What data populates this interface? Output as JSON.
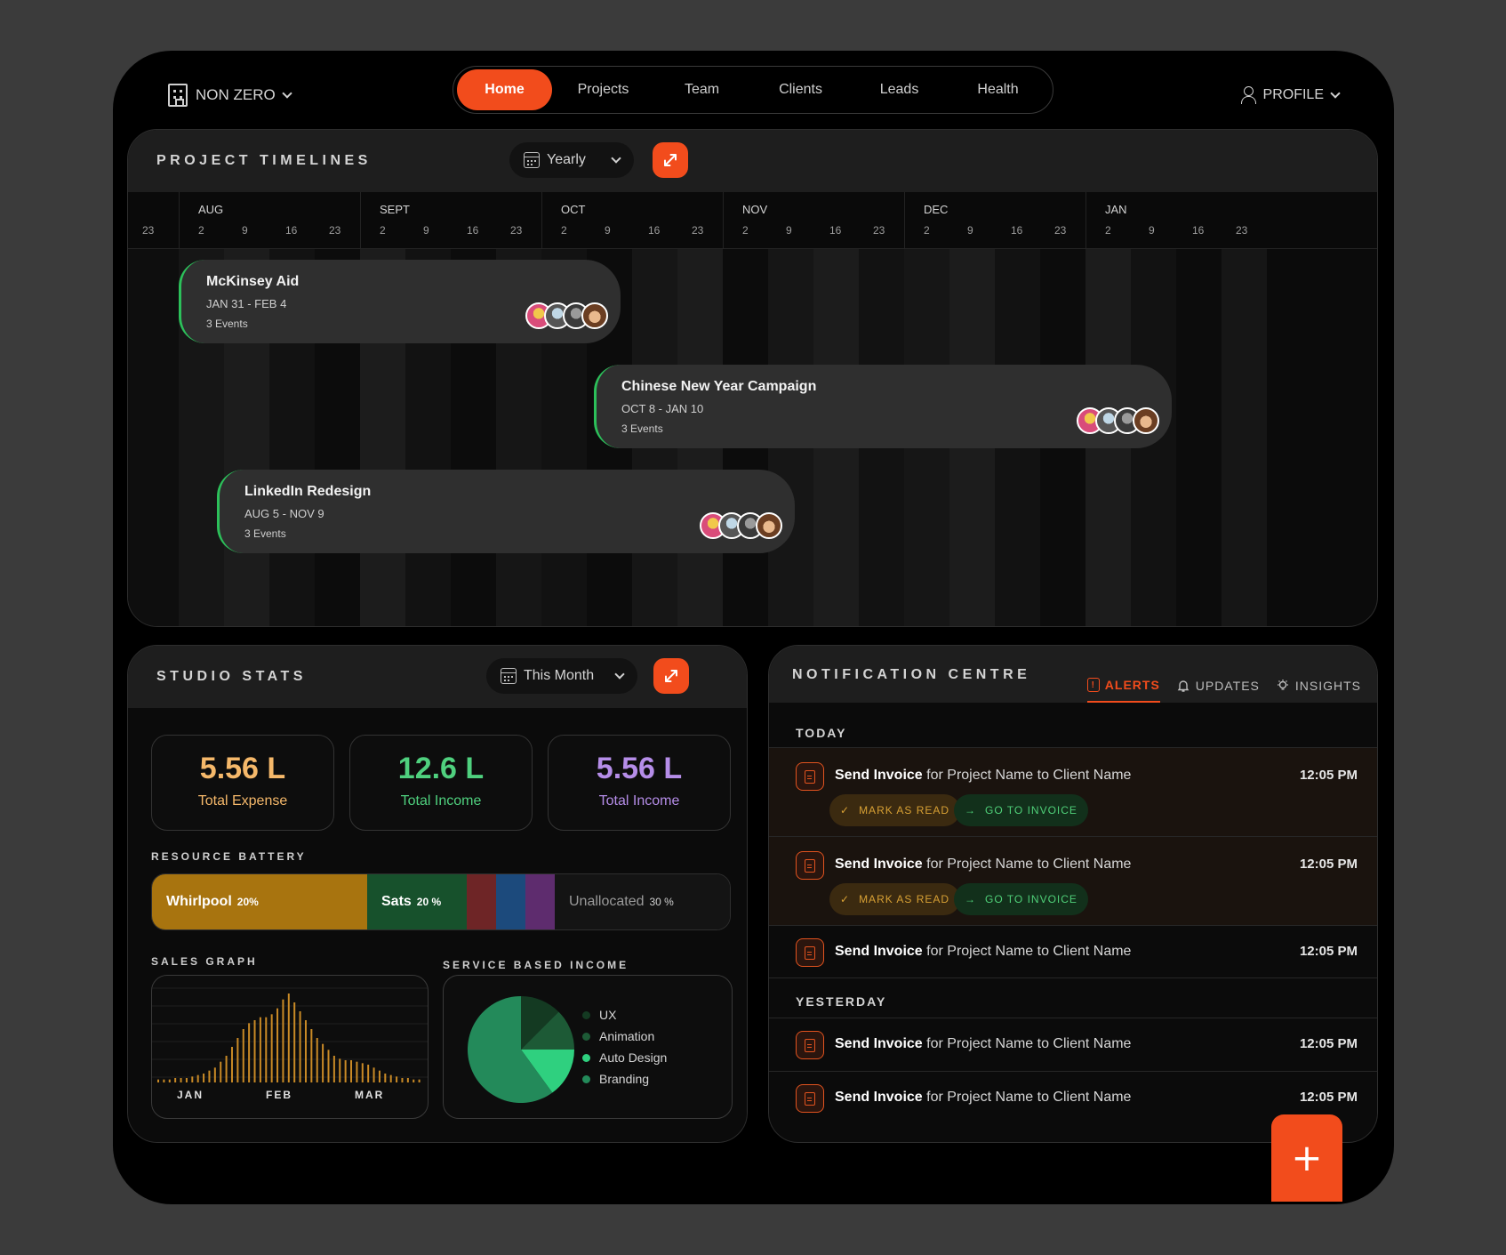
{
  "brand": {
    "name": "NON ZERO"
  },
  "nav": {
    "tabs": [
      {
        "label": "Home",
        "active": true
      },
      {
        "label": "Projects"
      },
      {
        "label": "Team"
      },
      {
        "label": "Clients"
      },
      {
        "label": "Leads"
      },
      {
        "label": "Health"
      }
    ]
  },
  "profile": {
    "label": "PROFILE"
  },
  "timeline": {
    "title": "PROJECT TIMELINES",
    "range": "Yearly",
    "lead_tick": "23",
    "months": [
      {
        "name": "AUG",
        "ticks": [
          "2",
          "9",
          "16",
          "23"
        ]
      },
      {
        "name": "SEPT",
        "ticks": [
          "2",
          "9",
          "16",
          "23"
        ]
      },
      {
        "name": "OCT",
        "ticks": [
          "2",
          "9",
          "16",
          "23"
        ]
      },
      {
        "name": "NOV",
        "ticks": [
          "2",
          "9",
          "16",
          "23"
        ]
      },
      {
        "name": "DEC",
        "ticks": [
          "2",
          "9",
          "16",
          "23"
        ]
      },
      {
        "name": "JAN",
        "ticks": [
          "2",
          "9",
          "16",
          "23"
        ]
      }
    ],
    "events": [
      {
        "name": "McKinsey Aid",
        "dates": "JAN 31 - FEB 4",
        "count": "3 Events"
      },
      {
        "name": "Chinese New Year Campaign",
        "dates": "OCT 8 - JAN 10",
        "count": "3 Events"
      },
      {
        "name": "LinkedIn Redesign",
        "dates": "AUG 5 - NOV 9",
        "count": "3 Events"
      }
    ]
  },
  "stats": {
    "title": "STUDIO STATS",
    "range": "This Month",
    "cards": [
      {
        "value": "5.56 L",
        "label": "Total Expense",
        "color": "#f5b86a"
      },
      {
        "value": "12.6 L",
        "label": "Total Income",
        "color": "#4fd07e"
      },
      {
        "value": "5.56 L",
        "label": "Total Income",
        "color": "#b58de8"
      }
    ],
    "battery": {
      "label": "RESOURCE BATTERY",
      "segments": [
        {
          "name": "Whirlpool",
          "pct": "20%",
          "color": "#a8740f"
        },
        {
          "name": "Sats",
          "pct": "20 %",
          "color": "#17512c"
        },
        {
          "name": "",
          "pct": "",
          "color": "#6e2526"
        },
        {
          "name": "",
          "pct": "",
          "color": "#1c4a7c"
        },
        {
          "name": "",
          "pct": "",
          "color": "#5e2c6e"
        },
        {
          "name": "Unallocated",
          "pct": "30 %",
          "color": "#141414"
        }
      ]
    },
    "sales": {
      "label": "SALES GRAPH",
      "months": [
        "JAN",
        "FEB",
        "MAR"
      ]
    },
    "service": {
      "label": "SERVICE BASED INCOME",
      "legend": [
        {
          "name": "UX",
          "color": "#143a22"
        },
        {
          "name": "Animation",
          "color": "#1d5a36"
        },
        {
          "name": "Auto Design",
          "color": "#2fd07f"
        },
        {
          "name": "Branding",
          "color": "#238a5a"
        }
      ]
    }
  },
  "notifications": {
    "title": "NOTIFICATION CENTRE",
    "tabs": [
      {
        "label": "ALERTS",
        "active": true
      },
      {
        "label": "UPDATES"
      },
      {
        "label": "INSIGHTS"
      }
    ],
    "sections": {
      "today": "TODAY",
      "yesterday": "YESTERDAY"
    },
    "item": {
      "action": "Send Invoice",
      "rest": " for Project Name to Client Name",
      "time": "12:05 PM"
    },
    "buttons": {
      "read": "MARK AS READ",
      "go": "GO TO INVOICE"
    }
  },
  "chart_data": [
    {
      "type": "bar",
      "title": "SALES GRAPH",
      "x_labels": [
        "JAN",
        "FEB",
        "MAR"
      ],
      "values": [
        2,
        2,
        2,
        3,
        3,
        3,
        4,
        5,
        6,
        8,
        10,
        14,
        18,
        24,
        30,
        36,
        40,
        42,
        44,
        44,
        46,
        50,
        56,
        60,
        54,
        48,
        42,
        36,
        30,
        26,
        22,
        18,
        16,
        15,
        15,
        14,
        13,
        12,
        10,
        8,
        6,
        5,
        4,
        3,
        3,
        2,
        2
      ],
      "ylim": [
        0,
        60
      ]
    },
    {
      "type": "pie",
      "title": "SERVICE BASED INCOME",
      "labels": [
        "UX",
        "Animation",
        "Auto Design",
        "Branding"
      ],
      "values": [
        12.5,
        12.5,
        15,
        60
      ],
      "colors": [
        "#143a22",
        "#1d5a36",
        "#2fd07f",
        "#238a5a"
      ]
    }
  ]
}
